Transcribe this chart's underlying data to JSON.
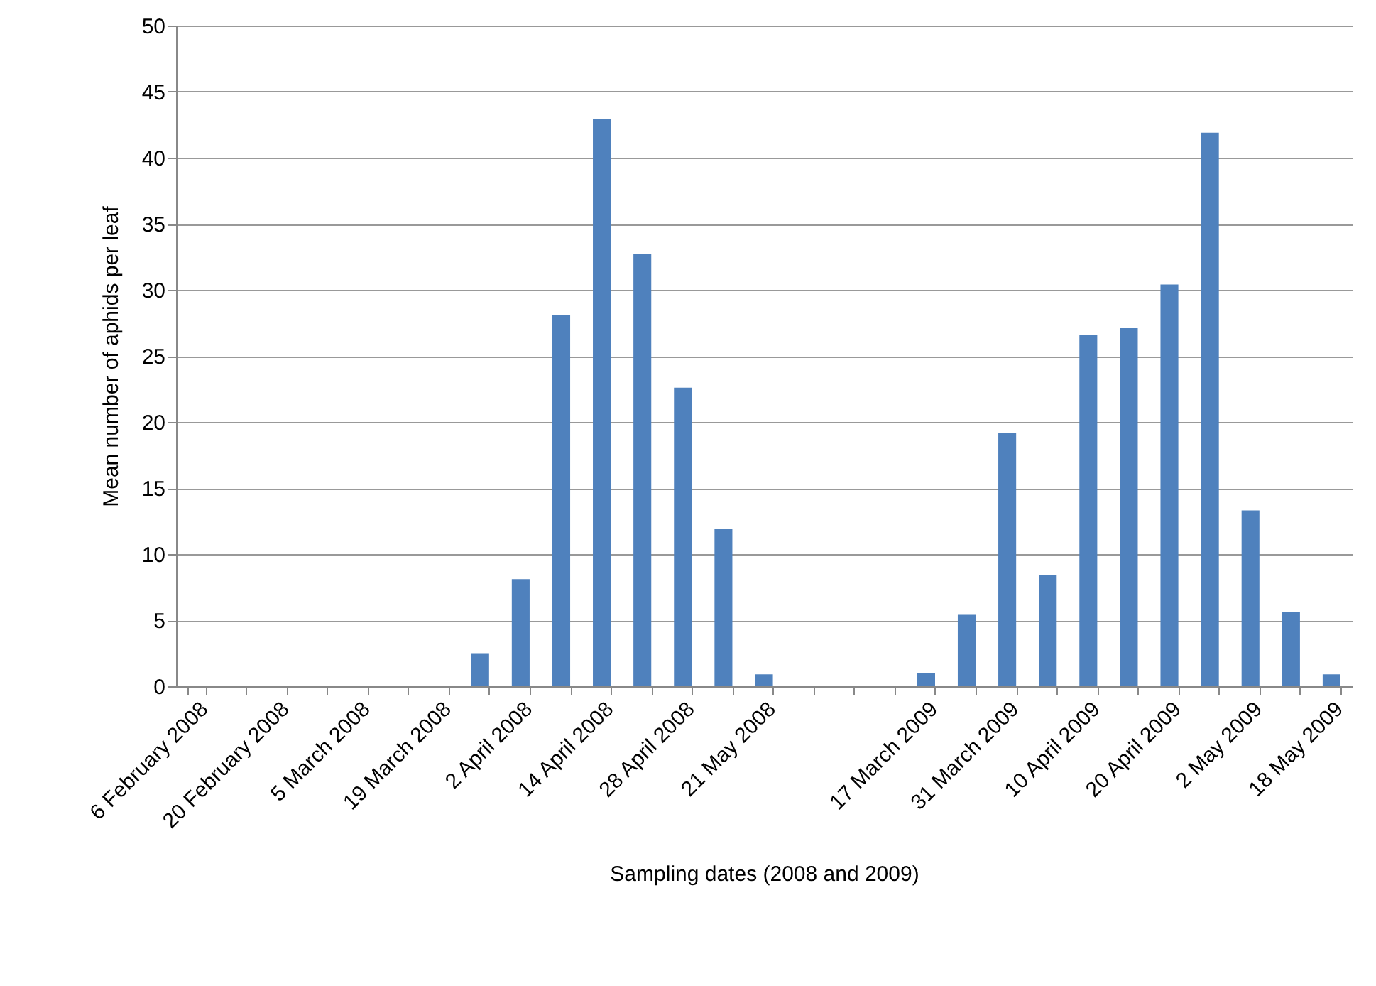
{
  "chart_data": {
    "type": "bar",
    "xlabel": "Sampling dates (2008 and 2009)",
    "ylabel": "Mean number of aphids per leaf",
    "categories": [
      "6 February 2008",
      null,
      "20 February 2008",
      null,
      "5 March 2008",
      null,
      "19 March 2008",
      null,
      "2 April 2008",
      null,
      "14 April 2008",
      null,
      "28 April 2008",
      null,
      "21 May 2008",
      null,
      null,
      null,
      "17 March 2009",
      null,
      "31 March 2009",
      null,
      "10 April 2009",
      null,
      "20 April 2009",
      null,
      "2 May 2009",
      null,
      "18 May 2009"
    ],
    "values": [
      0,
      0,
      0,
      0,
      0,
      0,
      0,
      2.5,
      8.1,
      28.1,
      42.9,
      32.7,
      22.6,
      11.9,
      0.9,
      0,
      0,
      0,
      1.0,
      5.4,
      19.2,
      8.4,
      26.6,
      27.1,
      30.4,
      41.9,
      13.3,
      5.6,
      0.9
    ],
    "color": "#4f81bd",
    "ylim": [
      0,
      50
    ],
    "yticks": [
      0,
      5,
      10,
      15,
      20,
      25,
      30,
      35,
      40,
      45,
      50
    ],
    "grid": "y"
  }
}
